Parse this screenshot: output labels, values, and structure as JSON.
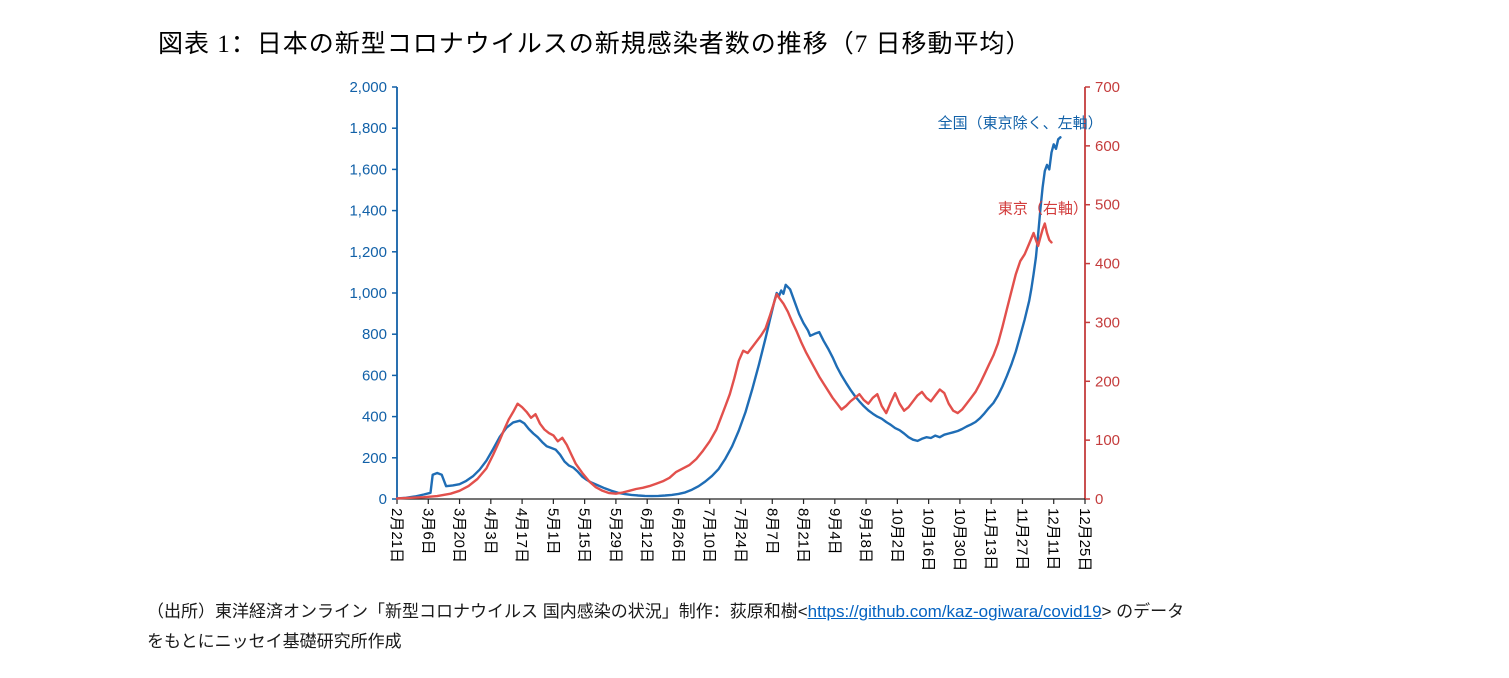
{
  "title": "図表 1：日本の新型コロナウイルスの新規感染者数の推移（7 日移動平均）",
  "chart_data": {
    "type": "line",
    "title": "図表 1：日本の新型コロナウイルスの新規感染者数の推移（7 日移動平均）",
    "grid": false,
    "legend_position": "annotations-inside-plot",
    "x_axis": {
      "tick_labels": [
        "2月21日",
        "3月6日",
        "3月20日",
        "4月3日",
        "4月17日",
        "5月1日",
        "5月15日",
        "5月29日",
        "6月12日",
        "6月26日",
        "7月10日",
        "7月24日",
        "8月7日",
        "8月21日",
        "9月4日",
        "9月18日",
        "10月2日",
        "10月16日",
        "10月30日",
        "11月13日",
        "11月27日",
        "12月11日",
        "12月25日"
      ],
      "tick_interval_days": 14,
      "range_days": 308,
      "color": "#000000"
    },
    "left_axis": {
      "min": 0,
      "max": 2000,
      "step": 200,
      "tick_labels": [
        "0",
        "200",
        "400",
        "600",
        "800",
        "1,000",
        "1,200",
        "1,400",
        "1,600",
        "1,800",
        "2,000"
      ],
      "color": "#1261A8"
    },
    "right_axis": {
      "min": 0,
      "max": 700,
      "step": 100,
      "tick_labels": [
        "0",
        "100",
        "200",
        "300",
        "400",
        "500",
        "600",
        "700"
      ],
      "color": "#C43C3C"
    },
    "series": [
      {
        "id": "national-ex-tokyo",
        "name": "全国（東京除く、左軸）",
        "axis": "left",
        "color": "#1F6DB5",
        "points": [
          [
            0,
            3
          ],
          [
            4,
            6
          ],
          [
            8,
            12
          ],
          [
            12,
            22
          ],
          [
            15,
            30
          ],
          [
            16,
            118
          ],
          [
            18,
            126
          ],
          [
            20,
            118
          ],
          [
            22,
            62
          ],
          [
            25,
            66
          ],
          [
            28,
            72
          ],
          [
            31,
            88
          ],
          [
            34,
            110
          ],
          [
            37,
            142
          ],
          [
            40,
            186
          ],
          [
            43,
            242
          ],
          [
            46,
            302
          ],
          [
            49,
            346
          ],
          [
            52,
            372
          ],
          [
            55,
            380
          ],
          [
            57,
            367
          ],
          [
            59,
            340
          ],
          [
            61,
            318
          ],
          [
            63,
            300
          ],
          [
            65,
            276
          ],
          [
            67,
            256
          ],
          [
            69,
            248
          ],
          [
            71,
            240
          ],
          [
            73,
            215
          ],
          [
            75,
            182
          ],
          [
            77,
            162
          ],
          [
            79,
            152
          ],
          [
            81,
            132
          ],
          [
            83,
            108
          ],
          [
            85,
            92
          ],
          [
            87,
            80
          ],
          [
            90,
            66
          ],
          [
            93,
            52
          ],
          [
            96,
            40
          ],
          [
            99,
            30
          ],
          [
            102,
            24
          ],
          [
            105,
            20
          ],
          [
            108,
            17
          ],
          [
            111,
            15
          ],
          [
            114,
            14
          ],
          [
            117,
            15
          ],
          [
            120,
            17
          ],
          [
            123,
            20
          ],
          [
            126,
            25
          ],
          [
            129,
            32
          ],
          [
            132,
            45
          ],
          [
            135,
            62
          ],
          [
            138,
            85
          ],
          [
            141,
            112
          ],
          [
            144,
            146
          ],
          [
            147,
            196
          ],
          [
            150,
            256
          ],
          [
            153,
            332
          ],
          [
            156,
            422
          ],
          [
            159,
            532
          ],
          [
            162,
            652
          ],
          [
            165,
            782
          ],
          [
            167,
            872
          ],
          [
            169,
            962
          ],
          [
            170,
            1000
          ],
          [
            171,
            985
          ],
          [
            172,
            1012
          ],
          [
            173,
            996
          ],
          [
            174,
            1040
          ],
          [
            176,
            1018
          ],
          [
            178,
            958
          ],
          [
            180,
            898
          ],
          [
            182,
            854
          ],
          [
            184,
            818
          ],
          [
            185,
            792
          ],
          [
            187,
            802
          ],
          [
            189,
            810
          ],
          [
            191,
            768
          ],
          [
            193,
            730
          ],
          [
            195,
            688
          ],
          [
            197,
            640
          ],
          [
            199,
            600
          ],
          [
            201,
            564
          ],
          [
            203,
            530
          ],
          [
            205,
            500
          ],
          [
            207,
            474
          ],
          [
            209,
            450
          ],
          [
            211,
            430
          ],
          [
            213,
            414
          ],
          [
            215,
            400
          ],
          [
            217,
            390
          ],
          [
            219,
            374
          ],
          [
            221,
            360
          ],
          [
            223,
            344
          ],
          [
            225,
            334
          ],
          [
            227,
            318
          ],
          [
            229,
            300
          ],
          [
            231,
            288
          ],
          [
            233,
            282
          ],
          [
            235,
            292
          ],
          [
            237,
            300
          ],
          [
            239,
            296
          ],
          [
            241,
            308
          ],
          [
            243,
            300
          ],
          [
            245,
            312
          ],
          [
            247,
            318
          ],
          [
            249,
            324
          ],
          [
            251,
            330
          ],
          [
            253,
            340
          ],
          [
            255,
            352
          ],
          [
            257,
            362
          ],
          [
            259,
            374
          ],
          [
            261,
            392
          ],
          [
            263,
            416
          ],
          [
            265,
            442
          ],
          [
            267,
            466
          ],
          [
            269,
            502
          ],
          [
            271,
            546
          ],
          [
            273,
            596
          ],
          [
            275,
            652
          ],
          [
            277,
            716
          ],
          [
            279,
            792
          ],
          [
            281,
            872
          ],
          [
            283,
            962
          ],
          [
            284,
            1022
          ],
          [
            285,
            1092
          ],
          [
            286,
            1172
          ],
          [
            287,
            1282
          ],
          [
            288,
            1402
          ],
          [
            289,
            1512
          ],
          [
            290,
            1592
          ],
          [
            291,
            1622
          ],
          [
            292,
            1600
          ],
          [
            293,
            1682
          ],
          [
            294,
            1722
          ],
          [
            295,
            1700
          ],
          [
            296,
            1746
          ],
          [
            297,
            1756
          ]
        ]
      },
      {
        "id": "tokyo",
        "name": "東京（右軸）",
        "axis": "right",
        "color": "#E2504C",
        "points": [
          [
            0,
            1
          ],
          [
            6,
            2
          ],
          [
            12,
            3
          ],
          [
            18,
            5
          ],
          [
            24,
            9
          ],
          [
            28,
            14
          ],
          [
            32,
            22
          ],
          [
            36,
            34
          ],
          [
            40,
            52
          ],
          [
            43,
            75
          ],
          [
            46,
            100
          ],
          [
            48,
            118
          ],
          [
            50,
            135
          ],
          [
            52,
            148
          ],
          [
            54,
            162
          ],
          [
            56,
            156
          ],
          [
            58,
            148
          ],
          [
            60,
            138
          ],
          [
            62,
            144
          ],
          [
            64,
            128
          ],
          [
            66,
            118
          ],
          [
            68,
            112
          ],
          [
            70,
            108
          ],
          [
            72,
            98
          ],
          [
            74,
            104
          ],
          [
            76,
            92
          ],
          [
            78,
            76
          ],
          [
            80,
            60
          ],
          [
            83,
            44
          ],
          [
            86,
            30
          ],
          [
            89,
            20
          ],
          [
            92,
            14
          ],
          [
            95,
            10
          ],
          [
            98,
            9
          ],
          [
            101,
            11
          ],
          [
            104,
            14
          ],
          [
            107,
            17
          ],
          [
            110,
            19
          ],
          [
            113,
            22
          ],
          [
            116,
            26
          ],
          [
            119,
            30
          ],
          [
            122,
            36
          ],
          [
            125,
            46
          ],
          [
            128,
            52
          ],
          [
            131,
            58
          ],
          [
            134,
            68
          ],
          [
            137,
            82
          ],
          [
            140,
            98
          ],
          [
            143,
            118
          ],
          [
            145,
            138
          ],
          [
            147,
            158
          ],
          [
            149,
            178
          ],
          [
            151,
            205
          ],
          [
            153,
            235
          ],
          [
            155,
            252
          ],
          [
            157,
            248
          ],
          [
            159,
            258
          ],
          [
            161,
            268
          ],
          [
            163,
            278
          ],
          [
            165,
            290
          ],
          [
            167,
            312
          ],
          [
            169,
            336
          ],
          [
            170,
            348
          ],
          [
            171,
            342
          ],
          [
            173,
            332
          ],
          [
            175,
            318
          ],
          [
            177,
            300
          ],
          [
            179,
            284
          ],
          [
            181,
            266
          ],
          [
            183,
            250
          ],
          [
            185,
            236
          ],
          [
            187,
            222
          ],
          [
            189,
            208
          ],
          [
            191,
            196
          ],
          [
            193,
            184
          ],
          [
            195,
            172
          ],
          [
            197,
            162
          ],
          [
            199,
            152
          ],
          [
            201,
            158
          ],
          [
            203,
            166
          ],
          [
            205,
            172
          ],
          [
            207,
            178
          ],
          [
            209,
            168
          ],
          [
            211,
            162
          ],
          [
            213,
            172
          ],
          [
            215,
            178
          ],
          [
            217,
            158
          ],
          [
            219,
            146
          ],
          [
            221,
            164
          ],
          [
            223,
            180
          ],
          [
            225,
            162
          ],
          [
            227,
            150
          ],
          [
            229,
            156
          ],
          [
            231,
            166
          ],
          [
            233,
            176
          ],
          [
            235,
            182
          ],
          [
            237,
            172
          ],
          [
            239,
            166
          ],
          [
            241,
            176
          ],
          [
            243,
            186
          ],
          [
            245,
            180
          ],
          [
            247,
            162
          ],
          [
            249,
            150
          ],
          [
            251,
            146
          ],
          [
            253,
            152
          ],
          [
            255,
            162
          ],
          [
            257,
            172
          ],
          [
            259,
            182
          ],
          [
            261,
            196
          ],
          [
            263,
            212
          ],
          [
            265,
            228
          ],
          [
            267,
            244
          ],
          [
            269,
            264
          ],
          [
            271,
            292
          ],
          [
            273,
            322
          ],
          [
            275,
            352
          ],
          [
            277,
            382
          ],
          [
            279,
            404
          ],
          [
            281,
            416
          ],
          [
            283,
            434
          ],
          [
            285,
            452
          ],
          [
            286,
            440
          ],
          [
            287,
            430
          ],
          [
            288,
            444
          ],
          [
            289,
            458
          ],
          [
            290,
            468
          ],
          [
            291,
            452
          ],
          [
            292,
            440
          ],
          [
            293,
            436
          ]
        ]
      }
    ],
    "annotations": [
      {
        "id": "national-series-label",
        "text": "全国（東京除く、左軸）",
        "axis": "left",
        "day": 242,
        "value": 1800,
        "color": "#1261A8"
      },
      {
        "id": "tokyo-series-label",
        "text": "東京（右軸）",
        "axis": "right",
        "day": 269,
        "value": 485,
        "color": "#D23C3C"
      }
    ]
  },
  "footer": {
    "line1_pre": "（出所）東洋経済オンライン「新型コロナウイルス 国内感染の状況」制作：荻原和樹<",
    "link_text": "https://github.com/kaz-ogiwara/covid19",
    "line1_post": "> のデータ",
    "line2": "をもとにニッセイ基礎研究所作成"
  }
}
